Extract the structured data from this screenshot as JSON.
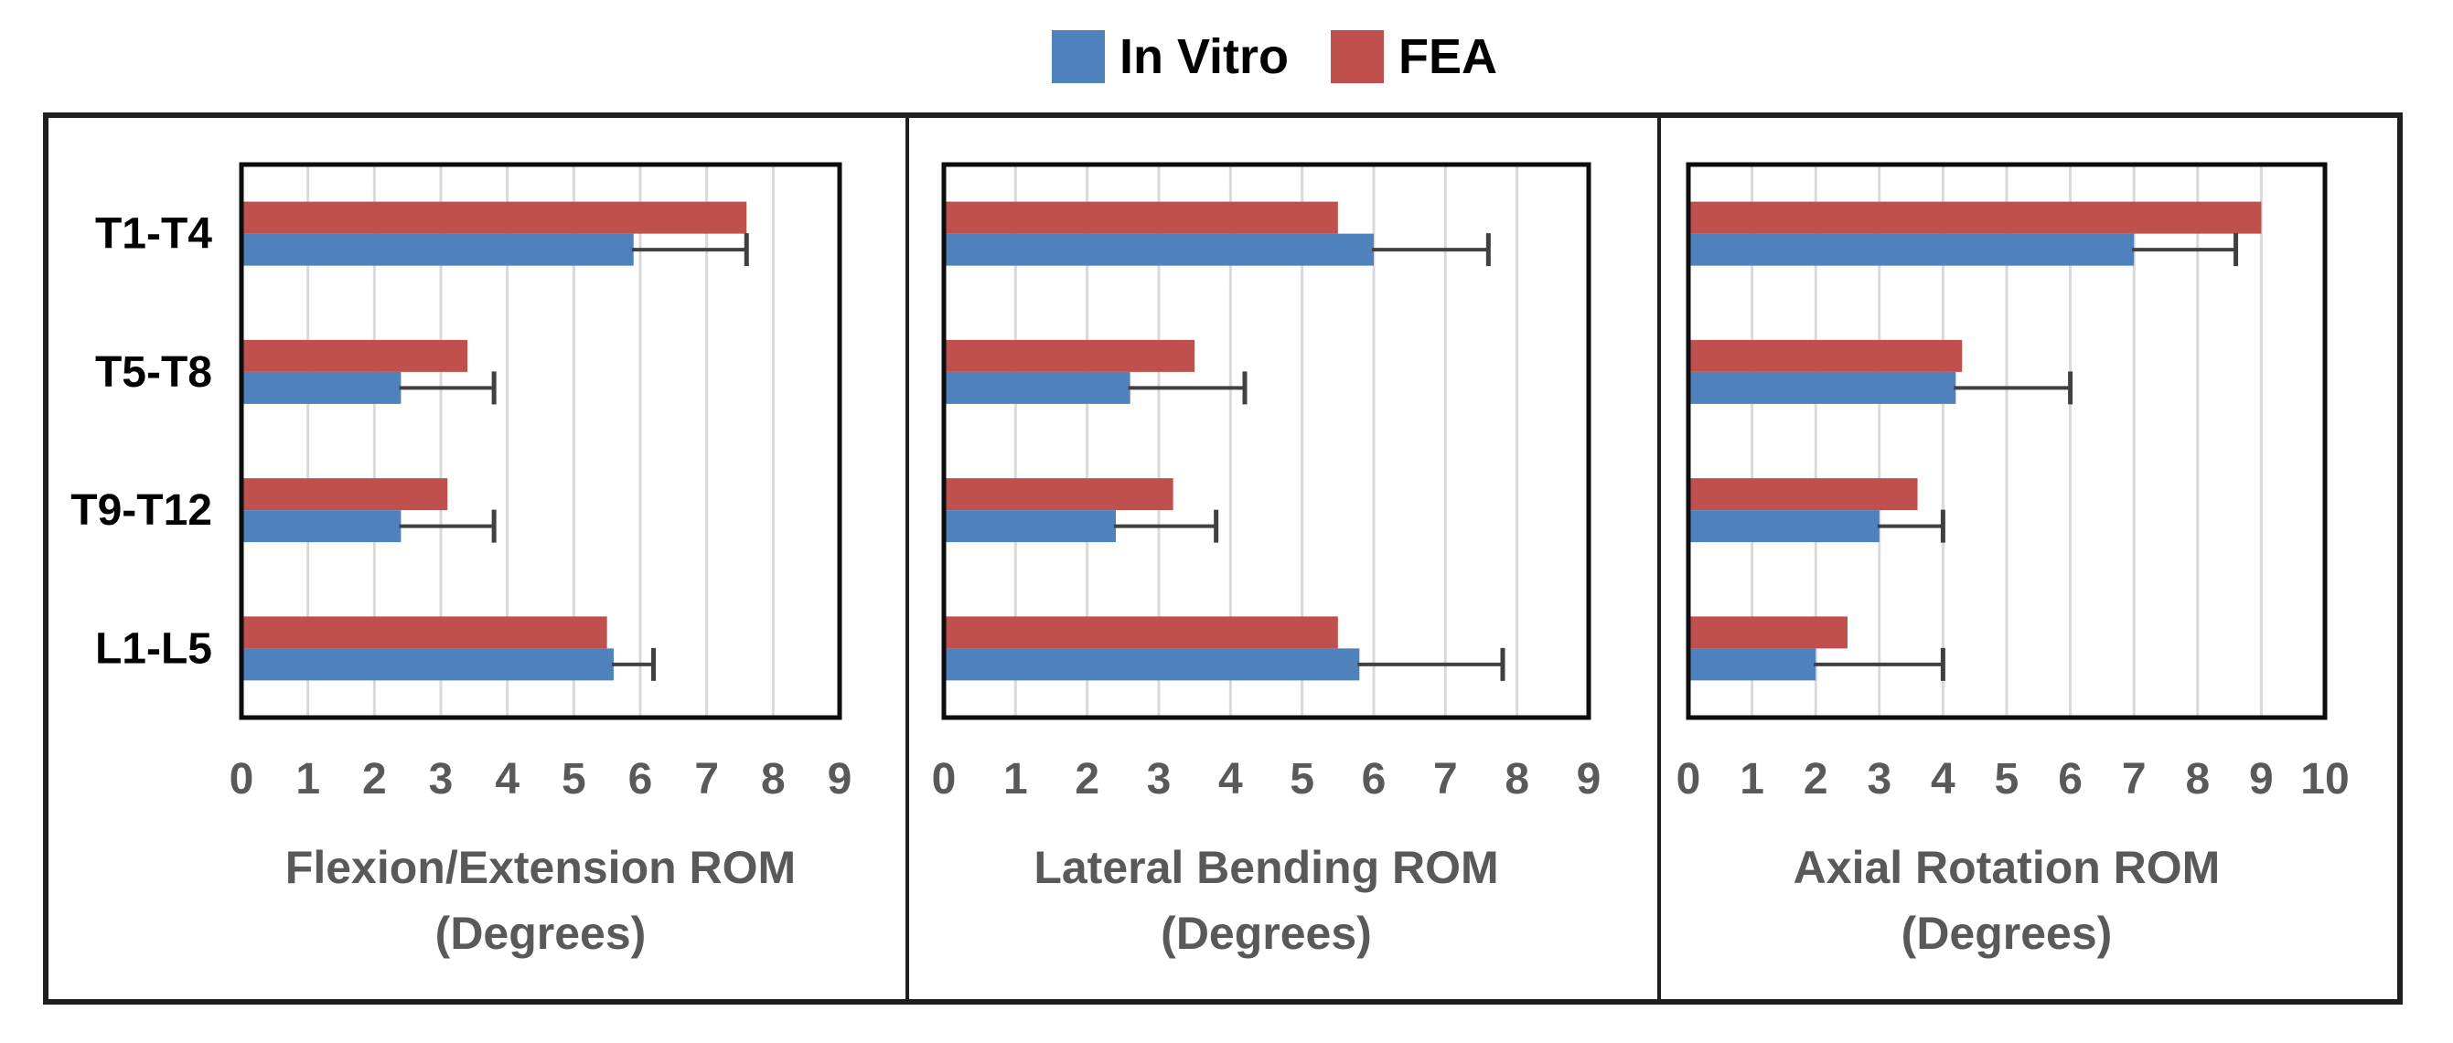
{
  "figure": {
    "background": "#ffffff"
  },
  "legend": {
    "items": [
      {
        "label": "In Vitro",
        "color": "#4F81BD"
      },
      {
        "label": "FEA",
        "color": "#C0504D"
      }
    ]
  },
  "colors": {
    "in_vitro": "#4F81BD",
    "fea": "#C0504D",
    "error_bar": "#404040",
    "gridline": "#d9d9d9",
    "plot_border": "#0d0d0d",
    "outer_border": "#1f1f1f",
    "tick_text": "#595959",
    "title_text": "#595959",
    "category_text": "#000000"
  },
  "chart_data": [
    {
      "type": "bar",
      "orientation": "horizontal",
      "title_lines": [
        "Flexion/Extension ROM",
        "(Degrees)"
      ],
      "categories": [
        "T1-T4",
        "T5-T8",
        "T9-T12",
        "L1-L5"
      ],
      "series": [
        {
          "name": "In Vitro",
          "color": "#4F81BD",
          "values": [
            5.9,
            2.4,
            2.4,
            5.6
          ],
          "error_plus": [
            1.7,
            1.4,
            1.4,
            0.6
          ]
        },
        {
          "name": "FEA",
          "color": "#C0504D",
          "values": [
            7.6,
            3.4,
            3.1,
            5.5
          ]
        }
      ],
      "xlim": [
        0,
        9
      ],
      "tick_labels": [
        "0",
        "1",
        "2",
        "3",
        "4",
        "5",
        "6",
        "7",
        "8",
        "9"
      ],
      "grid": true,
      "legend_position": "top"
    },
    {
      "type": "bar",
      "orientation": "horizontal",
      "title_lines": [
        "Lateral Bending ROM",
        "(Degrees)"
      ],
      "categories": [
        "T1-T4",
        "T5-T8",
        "T9-T12",
        "L1-L5"
      ],
      "series": [
        {
          "name": "In Vitro",
          "color": "#4F81BD",
          "values": [
            6.0,
            2.6,
            2.4,
            5.8
          ],
          "error_plus": [
            1.6,
            1.6,
            1.4,
            2.0
          ]
        },
        {
          "name": "FEA",
          "color": "#C0504D",
          "values": [
            5.5,
            3.5,
            3.2,
            5.5
          ]
        }
      ],
      "xlim": [
        0,
        9
      ],
      "tick_labels": [
        "0",
        "1",
        "2",
        "3",
        "4",
        "5",
        "6",
        "7",
        "8",
        "9"
      ],
      "grid": true,
      "legend_position": "top"
    },
    {
      "type": "bar",
      "orientation": "horizontal",
      "title_lines": [
        "Axial Rotation ROM",
        "(Degrees)"
      ],
      "categories": [
        "T1-T4",
        "T5-T8",
        "T9-T12",
        "L1-L5"
      ],
      "series": [
        {
          "name": "In Vitro",
          "color": "#4F81BD",
          "values": [
            7.0,
            4.2,
            3.0,
            2.0
          ],
          "error_plus": [
            1.6,
            1.8,
            1.0,
            2.0
          ]
        },
        {
          "name": "FEA",
          "color": "#C0504D",
          "values": [
            9.0,
            4.3,
            3.6,
            2.5
          ]
        }
      ],
      "xlim": [
        0,
        10
      ],
      "tick_labels": [
        "0",
        "1",
        "2",
        "3",
        "4",
        "5",
        "6",
        "7",
        "8",
        "9",
        "10"
      ],
      "grid": true,
      "legend_position": "top"
    }
  ]
}
